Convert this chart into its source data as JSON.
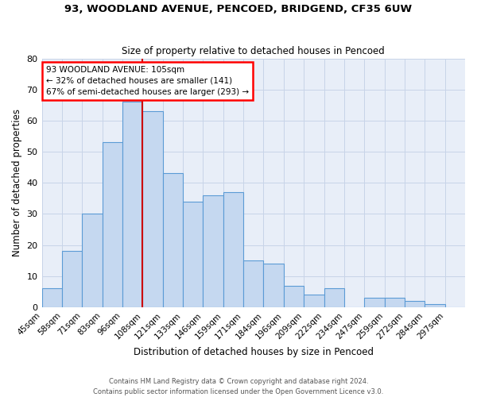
{
  "title_line1": "93, WOODLAND AVENUE, PENCOED, BRIDGEND, CF35 6UW",
  "title_line2": "Size of property relative to detached houses in Pencoed",
  "xlabel": "Distribution of detached houses by size in Pencoed",
  "ylabel": "Number of detached properties",
  "categories": [
    "45sqm",
    "58sqm",
    "71sqm",
    "83sqm",
    "96sqm",
    "108sqm",
    "121sqm",
    "133sqm",
    "146sqm",
    "159sqm",
    "171sqm",
    "184sqm",
    "196sqm",
    "209sqm",
    "222sqm",
    "234sqm",
    "247sqm",
    "259sqm",
    "272sqm",
    "284sqm",
    "297sqm"
  ],
  "values": [
    6,
    18,
    30,
    53,
    66,
    63,
    43,
    34,
    36,
    37,
    15,
    14,
    7,
    4,
    6,
    0,
    3,
    3,
    2,
    1,
    0
  ],
  "bar_color": "#c5d8f0",
  "bar_edge_color": "#5b9bd5",
  "annotation_title": "93 WOODLAND AVENUE: 105sqm",
  "annotation_line1": "← 32% of detached houses are smaller (141)",
  "annotation_line2": "67% of semi-detached houses are larger (293) →",
  "annotation_box_color": "white",
  "annotation_box_edge": "red",
  "red_line_color": "#cc0000",
  "ylim": [
    0,
    80
  ],
  "yticks": [
    0,
    10,
    20,
    30,
    40,
    50,
    60,
    70,
    80
  ],
  "grid_color": "#c8d4e8",
  "bg_color": "#e8eef8",
  "footer_line1": "Contains HM Land Registry data © Crown copyright and database right 2024.",
  "footer_line2": "Contains public sector information licensed under the Open Government Licence v3.0."
}
